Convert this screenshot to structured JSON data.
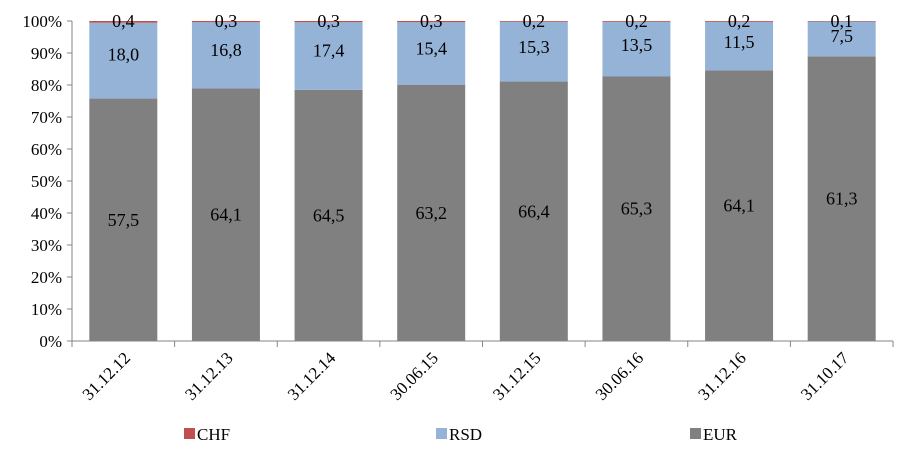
{
  "chart_data": {
    "type": "bar",
    "stacked": "percent",
    "categories": [
      "31.12.12",
      "31.12.13",
      "31.12.14",
      "30.06.15",
      "31.12.15",
      "30.06.16",
      "31.12.16",
      "31.10.17"
    ],
    "series": [
      {
        "name": "EUR",
        "values": [
          57.5,
          64.1,
          64.5,
          63.2,
          66.4,
          65.3,
          64.1,
          61.3
        ],
        "labels": [
          "57,5",
          "64,1",
          "64,5",
          "63,2",
          "66,4",
          "65,3",
          "64,1",
          "61,3"
        ],
        "color": "#808080"
      },
      {
        "name": "RSD",
        "values": [
          18.0,
          16.8,
          17.4,
          15.4,
          15.3,
          13.5,
          11.5,
          7.5
        ],
        "labels": [
          "18,0",
          "16,8",
          "17,4",
          "15,4",
          "15,3",
          "13,5",
          "11,5",
          "7,5"
        ],
        "color": "#95B3D7"
      },
      {
        "name": "CHF",
        "values": [
          0.4,
          0.3,
          0.3,
          0.3,
          0.2,
          0.2,
          0.2,
          0.1
        ],
        "labels": [
          "0,4",
          "0,3",
          "0,3",
          "0,3",
          "0,2",
          "0,2",
          "0,2",
          "0,1"
        ],
        "color": "#C0504D"
      }
    ],
    "y_ticks": [
      "0%",
      "10%",
      "20%",
      "30%",
      "40%",
      "50%",
      "60%",
      "70%",
      "80%",
      "90%",
      "100%"
    ],
    "ylim": [
      0,
      100
    ],
    "grid": false,
    "legend": {
      "position": "bottom",
      "order": [
        "CHF",
        "RSD",
        "EUR"
      ]
    }
  }
}
